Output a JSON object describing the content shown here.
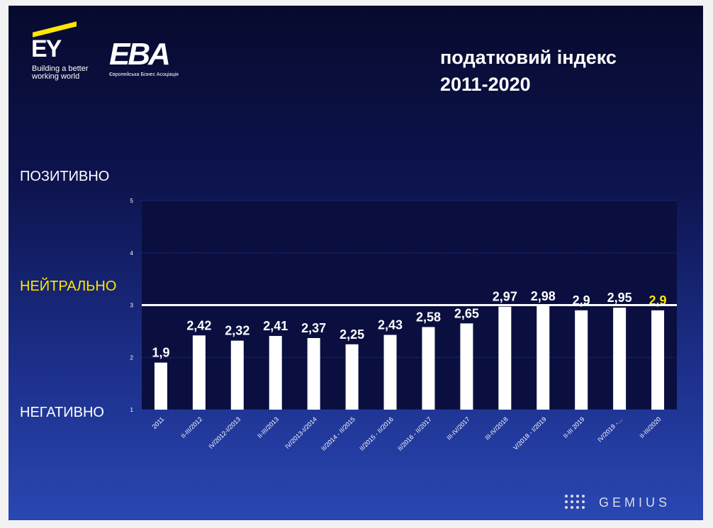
{
  "header": {
    "ey_logo": {
      "mark": "EY",
      "tagline": "Building a better\nworking world"
    },
    "eba_logo": {
      "mark": "EBA",
      "subtitle": "Європейська Бізнес Асоціація"
    },
    "title_line1": "податковий індекс",
    "title_line2": "2011-2020"
  },
  "scale_labels": {
    "positive": "ПОЗИТИВНО",
    "neutral": "НЕЙТРАЛЬНО",
    "negative": "НЕГАТИВНО"
  },
  "footer": {
    "brand": "GEMIUS"
  },
  "colors": {
    "background_dark": "#070a2e",
    "background_light": "#2a47b3",
    "plot_area": "#0a0f40",
    "bar": "#ffffff",
    "highlight": "#ffe600",
    "neutral_line": "#ffffff"
  },
  "chart_data": {
    "type": "bar",
    "title": "податковий індекс 2011-2020",
    "categories": [
      "2011",
      "II-III/2012",
      "IV/2012-I/2013",
      "II-III/2013",
      "IV/2013-I/2014",
      "II/2014 - II/2015",
      "II/2015 - II/2016",
      "II/2016 - II/2017",
      "III-IV/2017",
      "III-IV/2018",
      "V/2018 - I/2019",
      "II-III 2019",
      "IV/2019 -…",
      "II-III/2020"
    ],
    "values": [
      1.9,
      2.42,
      2.32,
      2.41,
      2.37,
      2.25,
      2.43,
      2.58,
      2.65,
      2.97,
      2.98,
      2.9,
      2.95,
      2.9
    ],
    "value_labels": [
      "1,9",
      "2,42",
      "2,32",
      "2,41",
      "2,37",
      "2,25",
      "2,43",
      "2,58",
      "2,65",
      "2,97",
      "2,98",
      "2,9",
      "2,95",
      "2,9"
    ],
    "highlight_index": 13,
    "ylim": [
      1,
      5
    ],
    "yticks": [
      1,
      2,
      3,
      4,
      5
    ],
    "ytick_labels": [
      "1",
      "2",
      "3",
      "4",
      "5"
    ],
    "reference_line": 3,
    "grid": true,
    "xlabel": "",
    "ylabel": ""
  }
}
